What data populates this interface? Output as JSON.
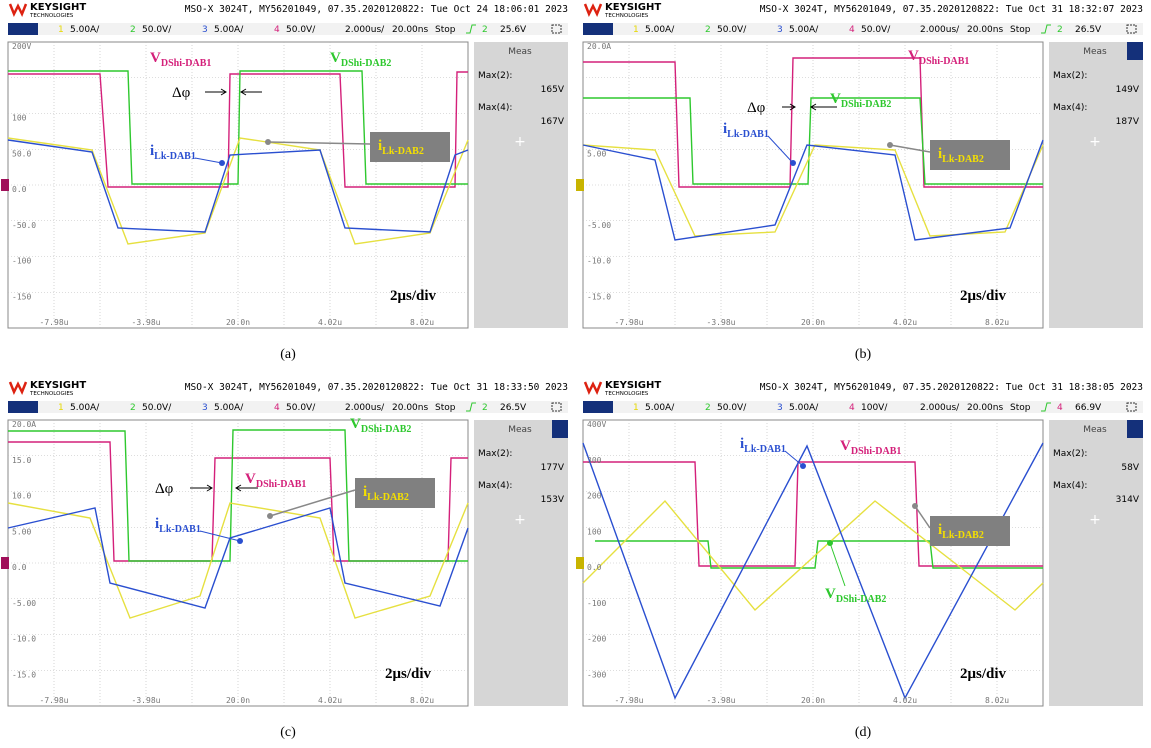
{
  "panels": [
    {
      "header": {
        "brand": "KEYSIGHT",
        "brand_sub": "TECHNOLOGIES",
        "info": "MSO-X 3024T, MY56201049, 07.35.2020120822: Tue Oct 24 18:06:01 2023"
      },
      "channels": [
        {
          "num": "1",
          "scale": "5.00A/"
        },
        {
          "num": "2",
          "scale": "50.0V/"
        },
        {
          "num": "3",
          "scale": "5.00A/"
        },
        {
          "num": "4",
          "scale": "50.0V/"
        }
      ],
      "timebase": "2.000us/",
      "delay": "20.00ns",
      "status": "Stop",
      "trigger": {
        "source": "2",
        "level": "25.6V"
      },
      "y_labels": [
        "200V",
        "100",
        "50.0",
        "0.0",
        "-50.0",
        "-100",
        "-150"
      ],
      "x_labels": [
        "-7.98u",
        "-3.98u",
        "20.0n",
        "4.02u",
        "8.02u"
      ],
      "meas": {
        "title": "Meas",
        "items": [
          {
            "label": "Max(2):",
            "value": "165V"
          },
          {
            "label": "Max(4):",
            "value": "167V"
          }
        ],
        "add": "+"
      },
      "annotations": {
        "v1": {
          "main": "V",
          "sub": "DShi-DAB1"
        },
        "v2": {
          "main": "V",
          "sub": "DShi-DAB2"
        },
        "i1": {
          "main": "i",
          "sub": "Lk-DAB1"
        },
        "i2": {
          "main": "i",
          "sub": "Lk-DAB2"
        },
        "dphi": "Δφ",
        "timescale": "2μs/div"
      },
      "caption": "(a)"
    },
    {
      "header": {
        "brand": "KEYSIGHT",
        "brand_sub": "TECHNOLOGIES",
        "info": "MSO-X 3024T, MY56201049, 07.35.2020120822: Tue Oct 31 18:32:07 2023"
      },
      "channels": [
        {
          "num": "1",
          "scale": "5.00A/"
        },
        {
          "num": "2",
          "scale": "50.0V/"
        },
        {
          "num": "3",
          "scale": "5.00A/"
        },
        {
          "num": "4",
          "scale": "50.0V/"
        }
      ],
      "timebase": "2.000us/",
      "delay": "20.00ns",
      "status": "Stop",
      "trigger": {
        "source": "2",
        "level": "26.5V"
      },
      "y_labels": [
        "20.0A",
        "5.00",
        "-5.00",
        "-10.0",
        "-15.0"
      ],
      "x_labels": [
        "-7.98u",
        "-3.98u",
        "20.0n",
        "4.02u",
        "8.02u"
      ],
      "meas": {
        "title": "Meas",
        "items": [
          {
            "label": "Max(2):",
            "value": "149V"
          },
          {
            "label": "Max(4):",
            "value": "187V"
          }
        ],
        "add": "+"
      },
      "annotations": {
        "v1": {
          "main": "V",
          "sub": "DShi-DAB1"
        },
        "v2": {
          "main": "V",
          "sub": "DShi-DAB2"
        },
        "i1": {
          "main": "i",
          "sub": "Lk-DAB1"
        },
        "i2": {
          "main": "i",
          "sub": "Lk-DAB2"
        },
        "dphi": "Δφ",
        "timescale": "2μs/div"
      },
      "caption": "(b)"
    },
    {
      "header": {
        "brand": "KEYSIGHT",
        "brand_sub": "TECHNOLOGIES",
        "info": "MSO-X 3024T, MY56201049, 07.35.2020120822: Tue Oct 31 18:33:50 2023"
      },
      "channels": [
        {
          "num": "1",
          "scale": "5.00A/"
        },
        {
          "num": "2",
          "scale": "50.0V/"
        },
        {
          "num": "3",
          "scale": "5.00A/"
        },
        {
          "num": "4",
          "scale": "50.0V/"
        }
      ],
      "timebase": "2.000us/",
      "delay": "20.00ns",
      "status": "Stop",
      "trigger": {
        "source": "2",
        "level": "26.5V"
      },
      "y_labels": [
        "20.0A",
        "15.0",
        "10.0",
        "5.00",
        "0.0",
        "-5.00",
        "-10.0",
        "-15.0"
      ],
      "x_labels": [
        "-7.98u",
        "-3.98u",
        "20.0n",
        "4.02u",
        "8.02u"
      ],
      "meas": {
        "title": "Meas",
        "items": [
          {
            "label": "Max(2):",
            "value": "177V"
          },
          {
            "label": "Max(4):",
            "value": "153V"
          }
        ],
        "add": "+"
      },
      "annotations": {
        "v1": {
          "main": "V",
          "sub": "DShi-DAB1"
        },
        "v2": {
          "main": "V",
          "sub": "DShi-DAB2"
        },
        "i1": {
          "main": "i",
          "sub": "Lk-DAB1"
        },
        "i2": {
          "main": "i",
          "sub": "Lk-DAB2"
        },
        "dphi": "Δφ",
        "timescale": "2μs/div"
      },
      "caption": "(c)"
    },
    {
      "header": {
        "brand": "KEYSIGHT",
        "brand_sub": "TECHNOLOGIES",
        "info": "MSO-X 3024T, MY56201049, 07.35.2020120822: Tue Oct 31 18:38:05 2023"
      },
      "channels": [
        {
          "num": "1",
          "scale": "5.00A/"
        },
        {
          "num": "2",
          "scale": "50.0V/"
        },
        {
          "num": "3",
          "scale": "5.00A/"
        },
        {
          "num": "4",
          "scale": "100V/"
        }
      ],
      "timebase": "2.000us/",
      "delay": "20.00ns",
      "status": "Stop",
      "trigger": {
        "source": "4",
        "level": "66.9V"
      },
      "y_labels": [
        "400V",
        "300",
        "200",
        "100",
        "0.0",
        "-100",
        "-200",
        "-300"
      ],
      "x_labels": [
        "-7.98u",
        "-3.98u",
        "20.0n",
        "4.02u",
        "8.02u"
      ],
      "meas": {
        "title": "Meas",
        "items": [
          {
            "label": "Max(2):",
            "value": "58V"
          },
          {
            "label": "Max(4):",
            "value": "314V"
          }
        ],
        "add": "+"
      },
      "annotations": {
        "v1": {
          "main": "V",
          "sub": "DShi-DAB1"
        },
        "v2": {
          "main": "V",
          "sub": "DShi-DAB2"
        },
        "i1": {
          "main": "i",
          "sub": "Lk-DAB1"
        },
        "i2": {
          "main": "i",
          "sub": "Lk-DAB2"
        },
        "timescale": "2μs/div"
      },
      "caption": "(d)"
    }
  ]
}
